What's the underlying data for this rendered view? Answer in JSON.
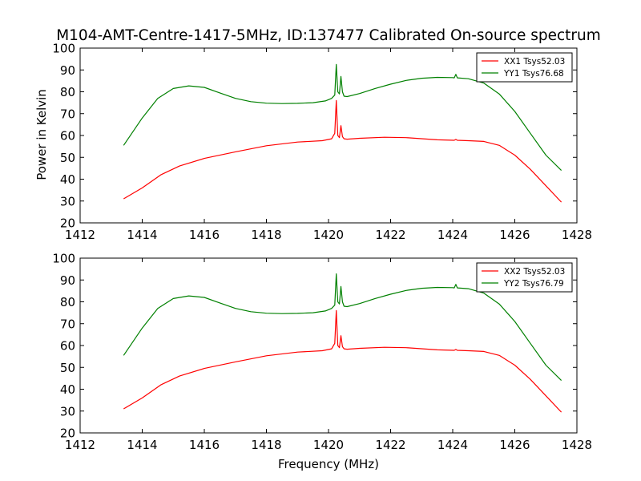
{
  "chart_data": {
    "title": "M104-AMT-Centre-1417-5MHz, ID:137477 Calibrated On-source spectrum",
    "ylabel": "Power in Kelvin",
    "xlabel": "Frequency (MHz)",
    "panels": [
      {
        "type": "line",
        "xlim": [
          1412,
          1428
        ],
        "ylim": [
          20,
          100
        ],
        "xticks": [
          1412,
          1414,
          1416,
          1418,
          1420,
          1422,
          1424,
          1426,
          1428
        ],
        "yticks": [
          20,
          30,
          40,
          50,
          60,
          70,
          80,
          90,
          100
        ],
        "legend": "top-right",
        "series": [
          {
            "name": "XX1 Tsys52.03",
            "color": "#ff0000",
            "x": [
              1413.4,
              1414.0,
              1414.6,
              1415.2,
              1416.0,
              1417.0,
              1418.0,
              1419.0,
              1419.8,
              1420.1,
              1420.2,
              1420.25,
              1420.3,
              1420.35,
              1420.4,
              1420.45,
              1420.5,
              1420.6,
              1421.0,
              1421.8,
              1422.5,
              1423.5,
              1424.05,
              1424.1,
              1424.15,
              1424.5,
              1425.0,
              1425.5,
              1426.0,
              1426.5,
              1427.0,
              1427.5
            ],
            "y": [
              31,
              36,
              42,
              46,
              49.5,
              52.5,
              55.3,
              57.0,
              57.6,
              58.5,
              61,
              76,
              60,
              59,
              64.5,
              59.5,
              58.5,
              58.3,
              58.7,
              59.2,
              59.0,
              58.0,
              57.8,
              58.2,
              57.8,
              57.6,
              57.3,
              55.5,
              51,
              44.5,
              37,
              29.5
            ]
          },
          {
            "name": "YY1 Tsys76.68",
            "color": "#008000",
            "x": [
              1413.4,
              1414.0,
              1414.5,
              1415.0,
              1415.5,
              1416.0,
              1416.5,
              1417.0,
              1417.5,
              1418.0,
              1418.5,
              1419.0,
              1419.5,
              1419.9,
              1420.1,
              1420.2,
              1420.25,
              1420.3,
              1420.35,
              1420.4,
              1420.45,
              1420.5,
              1420.6,
              1421.0,
              1421.5,
              1422.0,
              1422.5,
              1423.0,
              1423.5,
              1424.0,
              1424.05,
              1424.1,
              1424.15,
              1424.5,
              1425.0,
              1425.5,
              1426.0,
              1426.5,
              1427.0,
              1427.5
            ],
            "y": [
              55.5,
              68,
              77,
              81.5,
              82.7,
              82.0,
              79.5,
              77.0,
              75.5,
              74.8,
              74.6,
              74.7,
              75.0,
              75.8,
              77,
              78.5,
              92.5,
              80,
              79,
              87,
              80,
              78,
              77.8,
              79.2,
              81.5,
              83.5,
              85.2,
              86.2,
              86.6,
              86.5,
              86.4,
              88,
              86.4,
              86.0,
              84.0,
              79.0,
              71.0,
              61.0,
              51.0,
              44.0
            ]
          }
        ]
      },
      {
        "type": "line",
        "xlim": [
          1412,
          1428
        ],
        "ylim": [
          20,
          100
        ],
        "xticks": [
          1412,
          1414,
          1416,
          1418,
          1420,
          1422,
          1424,
          1426,
          1428
        ],
        "yticks": [
          20,
          30,
          40,
          50,
          60,
          70,
          80,
          90,
          100
        ],
        "legend": "top-right",
        "series": [
          {
            "name": "XX2 Tsys52.03",
            "color": "#ff0000",
            "x": [
              1413.4,
              1414.0,
              1414.6,
              1415.2,
              1416.0,
              1417.0,
              1418.0,
              1419.0,
              1419.8,
              1420.1,
              1420.2,
              1420.25,
              1420.3,
              1420.35,
              1420.4,
              1420.45,
              1420.5,
              1420.6,
              1421.0,
              1421.8,
              1422.5,
              1423.5,
              1424.05,
              1424.1,
              1424.15,
              1424.5,
              1425.0,
              1425.5,
              1426.0,
              1426.5,
              1427.0,
              1427.5
            ],
            "y": [
              31,
              36,
              42,
              46,
              49.5,
              52.5,
              55.3,
              57.0,
              57.6,
              58.5,
              61,
              76,
              60,
              59,
              64.5,
              59.5,
              58.5,
              58.3,
              58.7,
              59.2,
              59.0,
              58.0,
              57.8,
              58.2,
              57.8,
              57.6,
              57.3,
              55.5,
              51,
              44.5,
              37,
              29.5
            ]
          },
          {
            "name": "YY2 Tsys76.79",
            "color": "#008000",
            "x": [
              1413.4,
              1414.0,
              1414.5,
              1415.0,
              1415.5,
              1416.0,
              1416.5,
              1417.0,
              1417.5,
              1418.0,
              1418.5,
              1419.0,
              1419.5,
              1419.9,
              1420.1,
              1420.2,
              1420.25,
              1420.3,
              1420.35,
              1420.4,
              1420.45,
              1420.5,
              1420.6,
              1421.0,
              1421.5,
              1422.0,
              1422.5,
              1423.0,
              1423.5,
              1424.0,
              1424.05,
              1424.1,
              1424.15,
              1424.5,
              1425.0,
              1425.5,
              1426.0,
              1426.5,
              1427.0,
              1427.5
            ],
            "y": [
              55.5,
              68,
              77,
              81.5,
              82.7,
              82.0,
              79.5,
              77.0,
              75.5,
              74.8,
              74.6,
              74.7,
              75.0,
              75.8,
              77,
              78.5,
              92.8,
              80,
              79,
              87,
              80,
              78,
              77.8,
              79.2,
              81.5,
              83.5,
              85.2,
              86.2,
              86.6,
              86.5,
              86.4,
              88,
              86.4,
              86.0,
              84.0,
              79.0,
              71.0,
              61.0,
              51.0,
              44.0
            ]
          }
        ]
      }
    ]
  }
}
